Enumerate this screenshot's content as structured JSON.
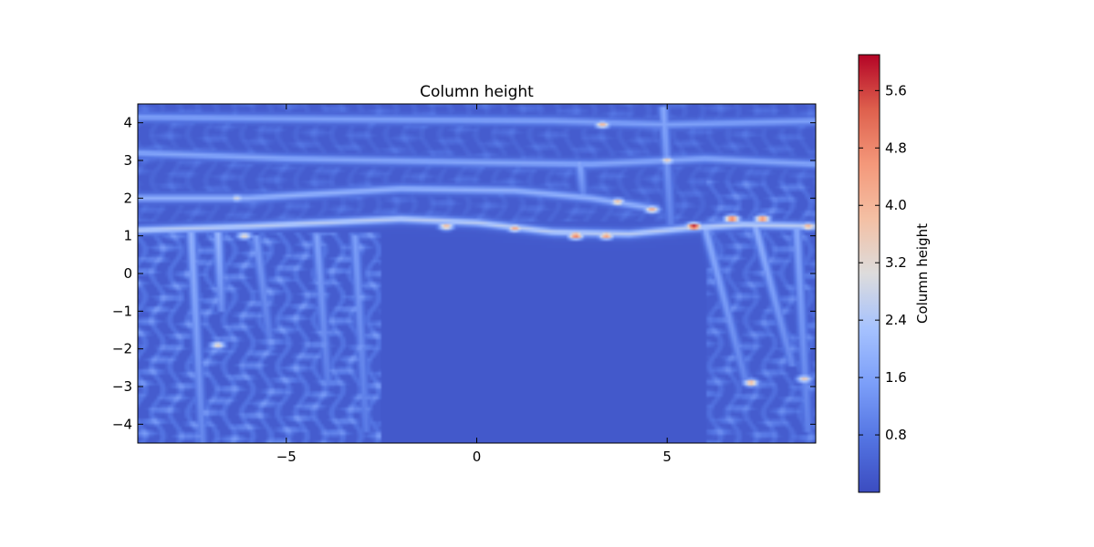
{
  "chart_data": {
    "type": "heatmap",
    "title": "Column height",
    "xlabel": "",
    "ylabel": "",
    "xlim": [
      -8.9,
      8.9
    ],
    "ylim": [
      -4.5,
      4.5
    ],
    "x_ticks": [
      -5,
      0,
      5
    ],
    "x_tick_labels": [
      "−5",
      "0",
      "5"
    ],
    "y_ticks": [
      4,
      3,
      2,
      1,
      0,
      -1,
      -2,
      -3,
      -4
    ],
    "y_tick_labels": [
      "4",
      "3",
      "2",
      "1",
      "0",
      "−1",
      "−2",
      "−3",
      "−4"
    ],
    "colormap": "coolwarm",
    "colorbar": {
      "label": "Column height",
      "range": [
        0.0,
        6.1
      ],
      "ticks": [
        0.8,
        1.6,
        2.4,
        3.2,
        4.0,
        4.8,
        5.6
      ],
      "tick_labels": [
        "0.8",
        "1.6",
        "2.4",
        "3.2",
        "4.0",
        "4.8",
        "5.6"
      ]
    },
    "field": {
      "background": 0.25,
      "ridges": [
        {
          "y_at": [
            [
              -8.9,
              1.15
            ],
            [
              -6,
              1.25
            ],
            [
              -2,
              1.45
            ],
            [
              0,
              1.35
            ],
            [
              2,
              1.1
            ],
            [
              4,
              1.05
            ],
            [
              5.5,
              1.2
            ],
            [
              7,
              1.3
            ],
            [
              8.9,
              1.25
            ]
          ],
          "peak": 3.6
        },
        {
          "y_at": [
            [
              -8.9,
              2.0
            ],
            [
              -6,
              2.0
            ],
            [
              -2,
              2.25
            ],
            [
              1,
              2.2
            ],
            [
              3,
              2.0
            ],
            [
              4.8,
              1.7
            ]
          ],
          "peak": 2.4
        },
        {
          "y_at": [
            [
              -8.9,
              3.2
            ],
            [
              -5,
              3.05
            ],
            [
              0,
              2.95
            ],
            [
              3,
              2.9
            ],
            [
              6,
              3.05
            ],
            [
              8.9,
              2.9
            ]
          ],
          "peak": 2.0
        },
        {
          "y_at": [
            [
              -8.9,
              4.15
            ],
            [
              -4,
              4.1
            ],
            [
              2,
              4.05
            ],
            [
              5,
              3.95
            ],
            [
              8.9,
              4.05
            ]
          ],
          "peak": 1.8
        }
      ],
      "hot_spots": [
        {
          "x": 5.7,
          "y": 1.25,
          "value": 6.1
        },
        {
          "x": 6.7,
          "y": 1.45,
          "value": 5.3
        },
        {
          "x": 7.5,
          "y": 1.45,
          "value": 5.0
        },
        {
          "x": 8.7,
          "y": 1.25,
          "value": 4.2
        },
        {
          "x": 2.6,
          "y": 1.0,
          "value": 5.1
        },
        {
          "x": 3.4,
          "y": 1.0,
          "value": 4.6
        },
        {
          "x": 1.0,
          "y": 1.2,
          "value": 4.3
        },
        {
          "x": -0.8,
          "y": 1.25,
          "value": 4.0
        },
        {
          "x": 4.6,
          "y": 1.7,
          "value": 4.2
        },
        {
          "x": 3.7,
          "y": 1.9,
          "value": 3.9
        },
        {
          "x": 3.3,
          "y": 3.95,
          "value": 4.0
        },
        {
          "x": 7.2,
          "y": -2.9,
          "value": 4.2
        },
        {
          "x": 8.6,
          "y": -2.8,
          "value": 3.6
        },
        {
          "x": -6.8,
          "y": -1.9,
          "value": 3.5
        },
        {
          "x": -6.1,
          "y": 1.0,
          "value": 3.4
        },
        {
          "x": -6.3,
          "y": 2.0,
          "value": 3.0
        },
        {
          "x": 5.0,
          "y": 3.0,
          "value": 3.5
        }
      ],
      "streaks": [
        {
          "x_top": -7.5,
          "x_bot": -7.2,
          "y_from": 1.1,
          "y_to": -4.5,
          "peak": 1.7
        },
        {
          "x_top": -6.8,
          "x_bot": -6.7,
          "y_from": 1.1,
          "y_to": -1.0,
          "peak": 1.9
        },
        {
          "x_top": -5.8,
          "x_bot": -5.4,
          "y_from": 1.0,
          "y_to": -2.0,
          "peak": 1.3
        },
        {
          "x_top": -4.2,
          "x_bot": -3.9,
          "y_from": 1.0,
          "y_to": -3.0,
          "peak": 1.4
        },
        {
          "x_top": -3.2,
          "x_bot": -2.9,
          "y_from": 1.0,
          "y_to": -4.2,
          "peak": 1.3
        },
        {
          "x_top": 6.0,
          "x_bot": 7.1,
          "y_from": 1.2,
          "y_to": -3.0,
          "peak": 1.6
        },
        {
          "x_top": 7.3,
          "x_bot": 8.3,
          "y_from": 1.3,
          "y_to": -2.5,
          "peak": 1.7
        },
        {
          "x_top": 8.4,
          "x_bot": 8.7,
          "y_from": 1.2,
          "y_to": -4.2,
          "peak": 1.5
        },
        {
          "x_top": 4.9,
          "x_bot": 5.1,
          "y_from": 4.4,
          "y_to": 1.2,
          "peak": 1.5
        },
        {
          "x_top": 2.7,
          "x_bot": 2.8,
          "y_from": 3.0,
          "y_to": 2.0,
          "peak": 1.6
        }
      ],
      "textured_regions": [
        {
          "x": [
            -8.9,
            -2.5
          ],
          "y": [
            -4.5,
            1.1
          ],
          "amplitude": 1.1
        },
        {
          "x": [
            6.0,
            8.9
          ],
          "y": [
            -4.5,
            2.5
          ],
          "amplitude": 0.9
        },
        {
          "x": [
            -8.9,
            8.9
          ],
          "y": [
            1.4,
            4.5
          ],
          "amplitude": 0.5
        }
      ]
    }
  }
}
